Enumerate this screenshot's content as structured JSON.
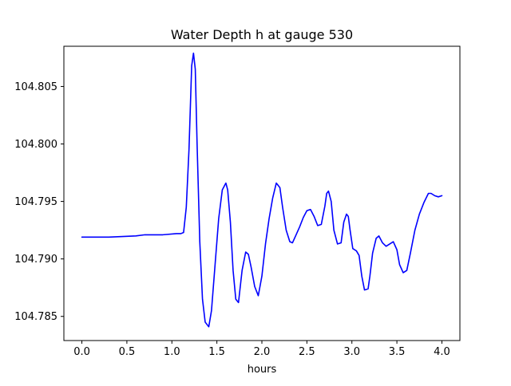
{
  "chart_data": {
    "type": "line",
    "title": "Water Depth h at gauge 530",
    "xlabel": "hours",
    "ylabel": "",
    "xlim": [
      -0.2,
      4.2
    ],
    "ylim": [
      104.7829,
      104.8085
    ],
    "xticks": [
      0.0,
      0.5,
      1.0,
      1.5,
      2.0,
      2.5,
      3.0,
      3.5,
      4.0
    ],
    "xtick_labels": [
      "0.0",
      "0.5",
      "1.0",
      "1.5",
      "2.0",
      "2.5",
      "3.0",
      "3.5",
      "4.0"
    ],
    "yticks": [
      104.785,
      104.79,
      104.795,
      104.8,
      104.805
    ],
    "ytick_labels": [
      "104.785",
      "104.790",
      "104.795",
      "104.800",
      "104.805"
    ],
    "grid": false,
    "series": [
      {
        "color": "#0000ff",
        "x": [
          0.0,
          0.3,
          0.6,
          0.7,
          0.9,
          1.05,
          1.1,
          1.13,
          1.16,
          1.19,
          1.22,
          1.24,
          1.26,
          1.28,
          1.31,
          1.34,
          1.37,
          1.41,
          1.44,
          1.48,
          1.52,
          1.56,
          1.6,
          1.62,
          1.65,
          1.68,
          1.71,
          1.74,
          1.78,
          1.82,
          1.85,
          1.88,
          1.92,
          1.96,
          2.0,
          2.04,
          2.08,
          2.12,
          2.16,
          2.2,
          2.23,
          2.27,
          2.31,
          2.34,
          2.38,
          2.42,
          2.46,
          2.5,
          2.54,
          2.58,
          2.62,
          2.66,
          2.7,
          2.72,
          2.74,
          2.77,
          2.8,
          2.84,
          2.88,
          2.91,
          2.94,
          2.96,
          2.98,
          3.01,
          3.05,
          3.08,
          3.11,
          3.14,
          3.18,
          3.2,
          3.23,
          3.27,
          3.3,
          3.34,
          3.38,
          3.42,
          3.46,
          3.5,
          3.53,
          3.57,
          3.61,
          3.65,
          3.7,
          3.75,
          3.8,
          3.85,
          3.88,
          3.92,
          3.96,
          4.0
        ],
        "y": [
          104.7919,
          104.7919,
          104.792,
          104.7921,
          104.7921,
          104.7922,
          104.7922,
          104.7923,
          104.7945,
          104.7995,
          104.8068,
          104.8079,
          104.8065,
          104.8,
          104.7915,
          104.7865,
          104.7845,
          104.7841,
          104.7855,
          104.7895,
          104.7935,
          104.796,
          104.7966,
          104.796,
          104.7932,
          104.789,
          104.7865,
          104.7862,
          104.789,
          104.7906,
          104.7904,
          104.7893,
          104.7876,
          104.7868,
          104.7885,
          104.7913,
          104.7935,
          104.7953,
          104.7966,
          104.7962,
          104.7945,
          104.7925,
          104.7915,
          104.7914,
          104.7921,
          104.7928,
          104.7936,
          104.7942,
          104.7943,
          104.7937,
          104.7929,
          104.793,
          104.7946,
          104.7957,
          104.7959,
          104.795,
          104.7925,
          104.7913,
          104.7914,
          104.7932,
          104.7939,
          104.7937,
          104.7925,
          104.7909,
          104.7907,
          104.7903,
          104.7885,
          104.7873,
          104.7874,
          104.7885,
          104.7905,
          104.7918,
          104.792,
          104.7914,
          104.7911,
          104.7913,
          104.7915,
          104.7908,
          104.7895,
          104.7888,
          104.789,
          104.7905,
          104.7925,
          104.7939,
          104.7949,
          104.7957,
          104.7957,
          104.7955,
          104.7954,
          104.7955
        ]
      }
    ]
  }
}
